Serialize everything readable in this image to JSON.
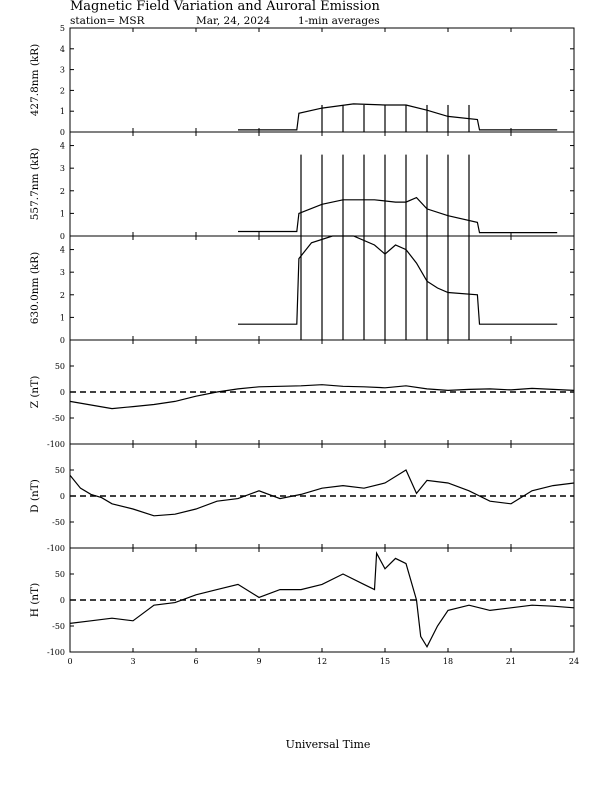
{
  "header": {
    "title": "Magnetic Field Variation and Auroral Emission",
    "station": "station= MSR",
    "date": "Mar, 24, 2024",
    "averaging": "1-min averages"
  },
  "x_axis": {
    "label": "Universal Time",
    "range": [
      0,
      24
    ],
    "ticks": [
      0,
      3,
      6,
      9,
      12,
      15,
      18,
      21,
      24
    ],
    "tick_labels": [
      "0",
      "3",
      "6",
      "9",
      "12",
      "15",
      "18",
      "21",
      "24"
    ]
  },
  "colors": {
    "line": "#000000",
    "background": "#ffffff"
  },
  "chart_data": [
    {
      "type": "line",
      "ylabel": "427.8nm (kR)",
      "ylim": [
        0,
        5
      ],
      "yticks": [
        0,
        1,
        2,
        3,
        4,
        5
      ],
      "ytick_labels": [
        "0",
        "1",
        "2",
        "3",
        "4",
        "5"
      ],
      "zero_line": false,
      "series": [
        {
          "x": [
            8.0,
            10.8,
            10.9,
            12.0,
            13.5,
            15.0,
            16.0,
            17.0,
            18.0,
            19.4,
            19.5,
            23.2
          ],
          "y": [
            0.1,
            0.1,
            0.9,
            1.15,
            1.35,
            1.3,
            1.3,
            1.05,
            0.75,
            0.6,
            0.1,
            0.1
          ]
        }
      ],
      "spikes": {
        "x": [
          12.0,
          13.0,
          14.0,
          15.0,
          16.0,
          17.0,
          18.0,
          19.0
        ],
        "y": 1.3
      }
    },
    {
      "type": "line",
      "ylabel": "557.7nm (kR)",
      "ylim": [
        0,
        4.6
      ],
      "yticks": [
        0,
        1,
        2,
        3,
        4
      ],
      "ytick_labels": [
        "0",
        "1",
        "2",
        "3",
        "4"
      ],
      "zero_line": false,
      "series": [
        {
          "x": [
            8.0,
            10.8,
            10.9,
            12.0,
            13.0,
            14.5,
            15.5,
            16.0,
            16.5,
            17.0,
            18.0,
            19.4,
            19.5,
            23.2
          ],
          "y": [
            0.2,
            0.2,
            1.0,
            1.4,
            1.6,
            1.6,
            1.5,
            1.5,
            1.7,
            1.2,
            0.9,
            0.6,
            0.15,
            0.15
          ]
        }
      ],
      "spikes": {
        "x": [
          11.0,
          12.0,
          13.0,
          14.0,
          15.0,
          16.0,
          17.0,
          18.0,
          19.0
        ],
        "y": 3.6
      }
    },
    {
      "type": "line",
      "ylabel": "630.0nm (kR)",
      "ylim": [
        0,
        4.6
      ],
      "yticks": [
        0,
        1,
        2,
        3,
        4
      ],
      "ytick_labels": [
        "0",
        "1",
        "2",
        "3",
        "4"
      ],
      "zero_line": false,
      "series": [
        {
          "x": [
            8.0,
            10.8,
            10.9,
            11.5,
            12.5,
            13.5,
            14.5,
            15.0,
            15.5,
            16.0,
            16.5,
            17.0,
            17.5,
            18.0,
            19.4,
            19.5,
            23.2
          ],
          "y": [
            0.7,
            0.7,
            3.6,
            4.3,
            4.6,
            4.6,
            4.2,
            3.8,
            4.2,
            4.0,
            3.4,
            2.6,
            2.3,
            2.1,
            2.0,
            0.7,
            0.7
          ]
        }
      ],
      "spikes": {
        "x": [
          11.0,
          12.0,
          13.0,
          14.0,
          15.0,
          16.0,
          17.0,
          18.0,
          19.0
        ],
        "y": 4.6
      }
    },
    {
      "type": "line",
      "ylabel": "Z (nT)",
      "ylim": [
        -100,
        100
      ],
      "yticks": [
        -100,
        -50,
        0,
        50
      ],
      "ytick_labels": [
        "-100",
        "-50",
        "0",
        "50"
      ],
      "zero_line": true,
      "series": [
        {
          "x": [
            0,
            1,
            2,
            3,
            4,
            5,
            6,
            7,
            8,
            9,
            10,
            11,
            12,
            13,
            14,
            15,
            16,
            17,
            18,
            19,
            20,
            21,
            22,
            23,
            24
          ],
          "y": [
            -18,
            -25,
            -32,
            -28,
            -24,
            -18,
            -8,
            0,
            6,
            10,
            11,
            12,
            14,
            11,
            10,
            8,
            12,
            6,
            3,
            5,
            6,
            4,
            7,
            5,
            3
          ]
        }
      ]
    },
    {
      "type": "line",
      "ylabel": "D (nT)",
      "ylim": [
        -100,
        100
      ],
      "yticks": [
        -100,
        -50,
        0,
        50
      ],
      "ytick_labels": [
        "-100",
        "-50",
        "0",
        "50"
      ],
      "zero_line": true,
      "series": [
        {
          "x": [
            0,
            0.5,
            1,
            1.5,
            2,
            3,
            4,
            5,
            6,
            7,
            8,
            9,
            10,
            11,
            12,
            13,
            14,
            15,
            16,
            16.5,
            17,
            18,
            19,
            20,
            21,
            22,
            23,
            24
          ],
          "y": [
            40,
            15,
            3,
            -3,
            -15,
            -25,
            -38,
            -35,
            -25,
            -10,
            -5,
            10,
            -5,
            3,
            15,
            20,
            15,
            25,
            50,
            5,
            30,
            25,
            10,
            -10,
            -15,
            10,
            20,
            25
          ]
        }
      ]
    },
    {
      "type": "line",
      "ylabel": "H (nT)",
      "ylim": [
        -100,
        100
      ],
      "yticks": [
        -100,
        -50,
        0,
        50
      ],
      "ytick_labels": [
        "-100",
        "-50",
        "0",
        "50"
      ],
      "zero_line": true,
      "series": [
        {
          "x": [
            0,
            1,
            2,
            3,
            4,
            5,
            6,
            7,
            8,
            9,
            10,
            11,
            12,
            13,
            14,
            14.5,
            14.6,
            15,
            15.5,
            16,
            16.5,
            16.7,
            17,
            17.5,
            18,
            19,
            20,
            21,
            22,
            23,
            24
          ],
          "y": [
            -45,
            -40,
            -35,
            -40,
            -10,
            -5,
            10,
            20,
            30,
            5,
            20,
            20,
            30,
            50,
            30,
            20,
            90,
            60,
            80,
            70,
            0,
            -70,
            -90,
            -50,
            -20,
            -10,
            -20,
            -15,
            -10,
            -12,
            -15
          ]
        }
      ]
    }
  ]
}
